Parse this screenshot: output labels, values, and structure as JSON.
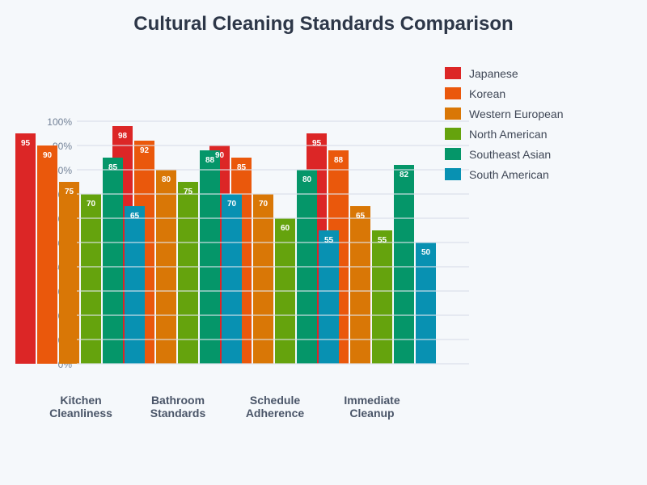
{
  "title": "Cultural Cleaning Standards Comparison",
  "chart_data": {
    "type": "bar",
    "title": "Cultural Cleaning Standards Comparison",
    "xlabel": "",
    "ylabel": "",
    "ylim": [
      0,
      100
    ],
    "y_ticks": [
      "0%",
      "10%",
      "20%",
      "30%",
      "40%",
      "50%",
      "60%",
      "70%",
      "80%",
      "90%",
      "100%"
    ],
    "grid": true,
    "legend_position": "right",
    "categories": [
      "Kitchen Cleanliness",
      "Bathroom Standards",
      "Schedule Adherence",
      "Immediate Cleanup"
    ],
    "category_lines": [
      [
        "Kitchen",
        "Cleanliness"
      ],
      [
        "Bathroom",
        "Standards"
      ],
      [
        "Schedule",
        "Adherence"
      ],
      [
        "Immediate",
        "Cleanup"
      ]
    ],
    "series": [
      {
        "name": "Japanese",
        "color": "#dc2626",
        "values": [
          95,
          98,
          90,
          95
        ]
      },
      {
        "name": "Korean",
        "color": "#ea580c",
        "values": [
          90,
          92,
          85,
          88
        ]
      },
      {
        "name": "Western European",
        "color": "#d97706",
        "values": [
          75,
          80,
          70,
          65
        ]
      },
      {
        "name": "North American",
        "color": "#65a30d",
        "values": [
          70,
          75,
          60,
          55
        ]
      },
      {
        "name": "Southeast Asian",
        "color": "#059669",
        "values": [
          85,
          88,
          80,
          82
        ]
      },
      {
        "name": "South American",
        "color": "#0891b2",
        "values": [
          65,
          70,
          55,
          50
        ]
      }
    ]
  }
}
